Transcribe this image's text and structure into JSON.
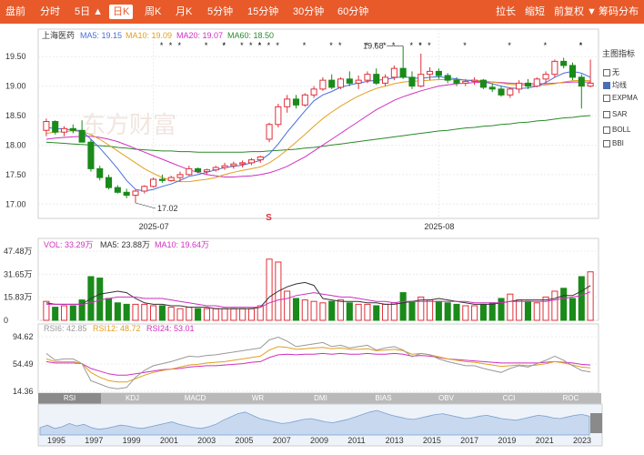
{
  "toolbar": {
    "left": [
      "盘前",
      "分时",
      "5日 ▲",
      "日K",
      "周K",
      "月K",
      "5分钟",
      "15分钟",
      "30分钟",
      "60分钟"
    ],
    "active": "日K",
    "right": [
      "拉长",
      "缩短",
      "前复权 ▼",
      "筹码分布"
    ]
  },
  "main": {
    "stock_name": "上海医药",
    "ma_labels": [
      {
        "text": "MA5: 19.15",
        "color": "#4a6fd8"
      },
      {
        "text": "MA10: 19.09",
        "color": "#e0a020"
      },
      {
        "text": "MA20: 19.07",
        "color": "#d030c0"
      },
      {
        "text": "MA60: 18.50",
        "color": "#2a8a2a"
      }
    ],
    "y_ticks": [
      "19.50",
      "19.00",
      "18.50",
      "18.00",
      "17.50",
      "17.00"
    ],
    "x_labels": [
      "2025-07",
      "2025-08"
    ],
    "high_label": "19.68",
    "low_label": "17.02",
    "s_marker": "S",
    "watermark": "东方财富"
  },
  "indicators": {
    "title": "主图指标",
    "items": [
      "无",
      "均线",
      "EXPMA",
      "SAR",
      "BOLL",
      "BBI"
    ],
    "checked": "均线"
  },
  "volume": {
    "labels": [
      {
        "text": "VOL: 33.29万",
        "color": "#d030c0"
      },
      {
        "text": "MA5: 23.88万",
        "color": "#333333"
      },
      {
        "text": "MA10: 19.64万",
        "color": "#d030c0"
      }
    ],
    "y_ticks": [
      "47.48万",
      "31.65万",
      "15.83万",
      "0"
    ]
  },
  "rsi": {
    "labels": [
      {
        "text": "RSI6: 42.85",
        "color": "#999999"
      },
      {
        "text": "RSI12: 48.72",
        "color": "#e0a020"
      },
      {
        "text": "RSI24: 53.01",
        "color": "#d030c0"
      }
    ],
    "y_ticks": [
      "94.62",
      "54.49",
      "14.36"
    ]
  },
  "tabs": [
    "RSI",
    "KDJ",
    "MACD",
    "WR",
    "DMI",
    "BIAS",
    "OBV",
    "CCI",
    "ROC"
  ],
  "active_tab": "RSI",
  "timeline": {
    "years": [
      "1995",
      "1997",
      "1999",
      "2001",
      "2003",
      "2005",
      "2007",
      "2009",
      "2011",
      "2013",
      "2015",
      "2017",
      "2019",
      "2021",
      "2023"
    ]
  },
  "colors": {
    "up": "#e0303a",
    "down": "#1a8a1a",
    "accent": "#e85a2a"
  },
  "chart_data": {
    "type": "candlestick",
    "ylim": [
      16.85,
      19.75
    ],
    "candles": [
      {
        "o": 18.25,
        "h": 18.45,
        "l": 18.15,
        "c": 18.4
      },
      {
        "o": 18.4,
        "h": 18.42,
        "l": 18.18,
        "c": 18.22
      },
      {
        "o": 18.22,
        "h": 18.32,
        "l": 18.15,
        "c": 18.28
      },
      {
        "o": 18.28,
        "h": 18.35,
        "l": 18.2,
        "c": 18.25
      },
      {
        "o": 18.25,
        "h": 18.42,
        "l": 18.05,
        "c": 18.05
      },
      {
        "o": 18.05,
        "h": 18.1,
        "l": 17.55,
        "c": 17.6
      },
      {
        "o": 17.6,
        "h": 17.65,
        "l": 17.4,
        "c": 17.45
      },
      {
        "o": 17.45,
        "h": 17.5,
        "l": 17.25,
        "c": 17.28
      },
      {
        "o": 17.28,
        "h": 17.32,
        "l": 17.18,
        "c": 17.2
      },
      {
        "o": 17.2,
        "h": 17.26,
        "l": 17.1,
        "c": 17.15
      },
      {
        "o": 17.15,
        "h": 17.25,
        "l": 17.02,
        "c": 17.22
      },
      {
        "o": 17.22,
        "h": 17.32,
        "l": 17.18,
        "c": 17.3
      },
      {
        "o": 17.3,
        "h": 17.45,
        "l": 17.28,
        "c": 17.42
      },
      {
        "o": 17.42,
        "h": 17.5,
        "l": 17.36,
        "c": 17.4
      },
      {
        "o": 17.4,
        "h": 17.48,
        "l": 17.38,
        "c": 17.45
      },
      {
        "o": 17.45,
        "h": 17.55,
        "l": 17.38,
        "c": 17.5
      },
      {
        "o": 17.5,
        "h": 17.65,
        "l": 17.48,
        "c": 17.6
      },
      {
        "o": 17.6,
        "h": 17.62,
        "l": 17.52,
        "c": 17.55
      },
      {
        "o": 17.55,
        "h": 17.6,
        "l": 17.5,
        "c": 17.58
      },
      {
        "o": 17.58,
        "h": 17.65,
        "l": 17.55,
        "c": 17.62
      },
      {
        "o": 17.62,
        "h": 17.7,
        "l": 17.58,
        "c": 17.65
      },
      {
        "o": 17.65,
        "h": 17.72,
        "l": 17.6,
        "c": 17.68
      },
      {
        "o": 17.68,
        "h": 17.74,
        "l": 17.62,
        "c": 17.7
      },
      {
        "o": 17.7,
        "h": 17.78,
        "l": 17.66,
        "c": 17.75
      },
      {
        "o": 17.75,
        "h": 17.82,
        "l": 17.7,
        "c": 17.8
      },
      {
        "o": 18.1,
        "h": 18.38,
        "l": 18.05,
        "c": 18.35
      },
      {
        "o": 18.35,
        "h": 18.7,
        "l": 18.3,
        "c": 18.65
      },
      {
        "o": 18.65,
        "h": 18.85,
        "l": 18.55,
        "c": 18.78
      },
      {
        "o": 18.78,
        "h": 18.85,
        "l": 18.62,
        "c": 18.68
      },
      {
        "o": 18.68,
        "h": 18.88,
        "l": 18.65,
        "c": 18.85
      },
      {
        "o": 18.85,
        "h": 19.0,
        "l": 18.8,
        "c": 18.95
      },
      {
        "o": 18.95,
        "h": 19.15,
        "l": 18.92,
        "c": 19.1
      },
      {
        "o": 19.1,
        "h": 19.2,
        "l": 18.95,
        "c": 18.98
      },
      {
        "o": 18.98,
        "h": 19.15,
        "l": 18.95,
        "c": 19.12
      },
      {
        "o": 19.12,
        "h": 19.25,
        "l": 19.0,
        "c": 19.05
      },
      {
        "o": 19.05,
        "h": 19.18,
        "l": 18.95,
        "c": 19.1
      },
      {
        "o": 19.1,
        "h": 19.25,
        "l": 19.05,
        "c": 19.2
      },
      {
        "o": 19.2,
        "h": 19.3,
        "l": 19.02,
        "c": 19.05
      },
      {
        "o": 19.05,
        "h": 19.2,
        "l": 19.0,
        "c": 19.15
      },
      {
        "o": 19.15,
        "h": 19.35,
        "l": 19.1,
        "c": 19.3
      },
      {
        "o": 19.3,
        "h": 19.68,
        "l": 19.12,
        "c": 19.15
      },
      {
        "o": 19.15,
        "h": 19.25,
        "l": 18.95,
        "c": 19.0
      },
      {
        "o": 19.0,
        "h": 19.55,
        "l": 18.98,
        "c": 19.2
      },
      {
        "o": 19.2,
        "h": 19.32,
        "l": 19.1,
        "c": 19.25
      },
      {
        "o": 19.25,
        "h": 19.3,
        "l": 19.12,
        "c": 19.18
      },
      {
        "o": 19.18,
        "h": 19.22,
        "l": 19.05,
        "c": 19.1
      },
      {
        "o": 19.1,
        "h": 19.15,
        "l": 19.0,
        "c": 19.05
      },
      {
        "o": 19.05,
        "h": 19.12,
        "l": 19.0,
        "c": 19.08
      },
      {
        "o": 19.08,
        "h": 19.15,
        "l": 19.02,
        "c": 19.1
      },
      {
        "o": 19.1,
        "h": 19.12,
        "l": 18.95,
        "c": 18.98
      },
      {
        "o": 18.98,
        "h": 19.05,
        "l": 18.9,
        "c": 18.95
      },
      {
        "o": 18.95,
        "h": 19.0,
        "l": 18.82,
        "c": 18.85
      },
      {
        "o": 18.85,
        "h": 18.98,
        "l": 18.8,
        "c": 18.95
      },
      {
        "o": 18.95,
        "h": 19.1,
        "l": 18.88,
        "c": 19.05
      },
      {
        "o": 19.05,
        "h": 19.12,
        "l": 18.95,
        "c": 19.0
      },
      {
        "o": 19.0,
        "h": 19.15,
        "l": 18.98,
        "c": 19.12
      },
      {
        "o": 19.12,
        "h": 19.25,
        "l": 19.05,
        "c": 19.2
      },
      {
        "o": 19.2,
        "h": 19.45,
        "l": 19.15,
        "c": 19.42
      },
      {
        "o": 19.42,
        "h": 19.48,
        "l": 19.3,
        "c": 19.35
      },
      {
        "o": 19.35,
        "h": 19.4,
        "l": 19.1,
        "c": 19.15
      },
      {
        "o": 19.15,
        "h": 19.2,
        "l": 18.62,
        "c": 19.0
      },
      {
        "o": 19.0,
        "h": 19.45,
        "l": 18.98,
        "c": 19.05
      }
    ],
    "ma5": [
      18.3,
      18.28,
      18.27,
      18.26,
      18.24,
      18.1,
      17.95,
      17.78,
      17.6,
      17.4,
      17.25,
      17.22,
      17.25,
      17.3,
      17.34,
      17.4,
      17.47,
      17.5,
      17.54,
      17.58,
      17.62,
      17.64,
      17.66,
      17.7,
      17.74,
      17.85,
      18.02,
      18.22,
      18.4,
      18.58,
      18.75,
      18.85,
      18.91,
      18.98,
      19.02,
      19.05,
      19.08,
      19.1,
      19.11,
      19.14,
      19.16,
      19.14,
      19.13,
      19.15,
      19.16,
      19.14,
      19.12,
      19.1,
      19.09,
      19.07,
      19.04,
      19.0,
      18.97,
      18.96,
      18.97,
      19.0,
      19.06,
      19.15,
      19.22,
      19.25,
      19.22,
      19.15
    ],
    "ma10": [
      18.2,
      18.22,
      18.23,
      18.24,
      18.23,
      18.18,
      18.1,
      18.0,
      17.9,
      17.8,
      17.7,
      17.6,
      17.52,
      17.45,
      17.4,
      17.38,
      17.38,
      17.4,
      17.42,
      17.45,
      17.5,
      17.54,
      17.57,
      17.6,
      17.63,
      17.7,
      17.8,
      17.92,
      18.05,
      18.18,
      18.32,
      18.45,
      18.56,
      18.66,
      18.75,
      18.83,
      18.9,
      18.96,
      19.0,
      19.04,
      19.07,
      19.08,
      19.09,
      19.1,
      19.11,
      19.11,
      19.11,
      19.1,
      19.1,
      19.09,
      19.07,
      19.05,
      19.03,
      19.02,
      19.01,
      19.01,
      19.02,
      19.04,
      19.07,
      19.09,
      19.1,
      19.09
    ],
    "ma20": [
      18.1,
      18.12,
      18.13,
      18.14,
      18.15,
      18.15,
      18.13,
      18.1,
      18.06,
      18.0,
      17.94,
      17.88,
      17.82,
      17.76,
      17.7,
      17.64,
      17.58,
      17.54,
      17.5,
      17.48,
      17.46,
      17.46,
      17.47,
      17.48,
      17.5,
      17.53,
      17.58,
      17.64,
      17.72,
      17.8,
      17.9,
      18.0,
      18.1,
      18.2,
      18.3,
      18.4,
      18.5,
      18.6,
      18.68,
      18.76,
      18.82,
      18.87,
      18.92,
      18.96,
      19.0,
      19.02,
      19.04,
      19.05,
      19.06,
      19.07,
      19.07,
      19.06,
      19.05,
      19.04,
      19.04,
      19.04,
      19.04,
      19.05,
      19.06,
      19.07,
      19.07,
      19.07
    ],
    "ma60": [
      18.05,
      18.04,
      18.03,
      18.02,
      18.01,
      18.0,
      17.99,
      17.98,
      17.96,
      17.95,
      17.93,
      17.92,
      17.91,
      17.9,
      17.9,
      17.89,
      17.89,
      17.88,
      17.88,
      17.88,
      17.88,
      17.88,
      17.88,
      17.89,
      17.89,
      17.9,
      17.91,
      17.92,
      17.93,
      17.95,
      17.96,
      17.98,
      18.0,
      18.02,
      18.04,
      18.06,
      18.08,
      18.1,
      18.12,
      18.14,
      18.16,
      18.18,
      18.2,
      18.22,
      18.24,
      18.25,
      18.27,
      18.29,
      18.3,
      18.32,
      18.33,
      18.35,
      18.36,
      18.38,
      18.39,
      18.41,
      18.42,
      18.44,
      18.46,
      18.47,
      18.49,
      18.5
    ],
    "volume": [
      13,
      9,
      10,
      10,
      14,
      30,
      29,
      15,
      12,
      11,
      11,
      11,
      10,
      10,
      9,
      8,
      9,
      8,
      8,
      8,
      8,
      8,
      8,
      8,
      10,
      42,
      40,
      20,
      15,
      14,
      13,
      12,
      13,
      14,
      12,
      11,
      11,
      10,
      11,
      12,
      19,
      13,
      16,
      14,
      13,
      12,
      11,
      10,
      10,
      11,
      12,
      15,
      18,
      14,
      13,
      12,
      16,
      20,
      22,
      15,
      30,
      33.29
    ],
    "vol_ma5": [
      12,
      11,
      11,
      11,
      11,
      15,
      18,
      19,
      20,
      19,
      15,
      12,
      11,
      11,
      10,
      10,
      9,
      9,
      9,
      8,
      8,
      8,
      8,
      8,
      9,
      16,
      20,
      23,
      25,
      26,
      24,
      15,
      14,
      13,
      13,
      13,
      12,
      12,
      11,
      11,
      12,
      13,
      14,
      14,
      15,
      14,
      13,
      12,
      11,
      11,
      11,
      12,
      13,
      14,
      14,
      14,
      14,
      15,
      17,
      17,
      20,
      23.88
    ],
    "vol_ma10": [
      11,
      11,
      11,
      11,
      11,
      12,
      14,
      15,
      16,
      16,
      16,
      15,
      15,
      15,
      14,
      13,
      12,
      11,
      10,
      10,
      9,
      9,
      9,
      9,
      9,
      12,
      14,
      15,
      17,
      18,
      19,
      18,
      17,
      16,
      16,
      15,
      14,
      13,
      13,
      12,
      13,
      13,
      13,
      13,
      13,
      13,
      13,
      13,
      12,
      12,
      12,
      12,
      13,
      13,
      13,
      13,
      13,
      14,
      15,
      16,
      17,
      19.64
    ],
    "rsi6": [
      70,
      60,
      62,
      62,
      55,
      30,
      25,
      20,
      18,
      20,
      35,
      45,
      52,
      55,
      58,
      62,
      66,
      65,
      67,
      68,
      70,
      72,
      74,
      76,
      78,
      90,
      94,
      88,
      80,
      82,
      84,
      86,
      80,
      82,
      78,
      80,
      82,
      75,
      78,
      80,
      75,
      65,
      70,
      68,
      62,
      58,
      55,
      52,
      52,
      48,
      45,
      42,
      48,
      52,
      50,
      55,
      60,
      66,
      60,
      52,
      45,
      42.85
    ],
    "rsi12": [
      62,
      58,
      58,
      58,
      55,
      42,
      35,
      30,
      28,
      28,
      33,
      38,
      42,
      45,
      47,
      50,
      53,
      54,
      56,
      57,
      58,
      60,
      62,
      64,
      66,
      75,
      80,
      79,
      76,
      77,
      78,
      79,
      77,
      78,
      76,
      76,
      77,
      74,
      75,
      76,
      74,
      69,
      70,
      68,
      65,
      62,
      60,
      58,
      57,
      55,
      53,
      51,
      52,
      53,
      52,
      53,
      55,
      58,
      56,
      53,
      50,
      48.72
    ],
    "rsi24": [
      58,
      56,
      56,
      56,
      55,
      48,
      44,
      40,
      38,
      38,
      40,
      42,
      44,
      46,
      47,
      48,
      50,
      51,
      52,
      52,
      53,
      54,
      55,
      57,
      58,
      64,
      68,
      69,
      68,
      69,
      69,
      70,
      69,
      70,
      69,
      69,
      70,
      69,
      69,
      70,
      69,
      66,
      67,
      66,
      64,
      62,
      61,
      60,
      59,
      58,
      57,
      56,
      56,
      56,
      56,
      56,
      57,
      58,
      57,
      56,
      54,
      53.01
    ],
    "timeline_profile": [
      9,
      12,
      8,
      10,
      14,
      11,
      13,
      9,
      7,
      8,
      10,
      12,
      11,
      9,
      8,
      10,
      12,
      14,
      16,
      13,
      11,
      9,
      8,
      10,
      13,
      18,
      22,
      26,
      28,
      24,
      20,
      18,
      16,
      14,
      15,
      17,
      19,
      20,
      18,
      16,
      15,
      17,
      19,
      22,
      25,
      28,
      30,
      27,
      24,
      22,
      20,
      19,
      21,
      23,
      25,
      26,
      24,
      22,
      20,
      21,
      23,
      24,
      22,
      20,
      19,
      18,
      20,
      22,
      24,
      23,
      21,
      20,
      22,
      24,
      25,
      23
    ]
  }
}
